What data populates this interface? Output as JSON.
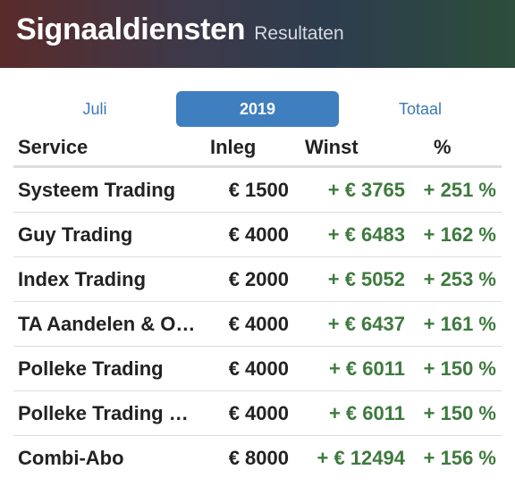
{
  "header": {
    "title": "Signaaldiensten",
    "subtitle": "Resultaten"
  },
  "tabs": [
    {
      "label": "Juli",
      "active": false
    },
    {
      "label": "2019",
      "active": true
    },
    {
      "label": "Totaal",
      "active": false
    }
  ],
  "table": {
    "columns": [
      "Service",
      "Inleg",
      "Winst",
      "%"
    ],
    "rows": [
      {
        "service": "Systeem Trading",
        "inleg": "€ 1500",
        "winst": "+ € 3765",
        "pct": "+ 251 %"
      },
      {
        "service": "Guy Trading",
        "inleg": "€ 4000",
        "winst": "+ € 6483",
        "pct": "+ 162 %"
      },
      {
        "service": "Index Trading",
        "inleg": "€ 2000",
        "winst": "+ € 5052",
        "pct": "+ 253 %"
      },
      {
        "service": "TA Aandelen & Opties",
        "inleg": "€ 4000",
        "winst": "+ € 6437",
        "pct": "+ 161 %"
      },
      {
        "service": "Polleke Trading",
        "inleg": "€ 4000",
        "winst": "+ € 6011",
        "pct": "+ 150 %"
      },
      {
        "service": "Polleke Trading Plus",
        "inleg": "€ 4000",
        "winst": "+ € 6011",
        "pct": "+ 150 %"
      },
      {
        "service": "Combi-Abo",
        "inleg": "€ 8000",
        "winst": "+ € 12494",
        "pct": "+ 156 %"
      }
    ]
  },
  "colors": {
    "accent": "#3f7fbf",
    "positive": "#3e7a3e"
  }
}
